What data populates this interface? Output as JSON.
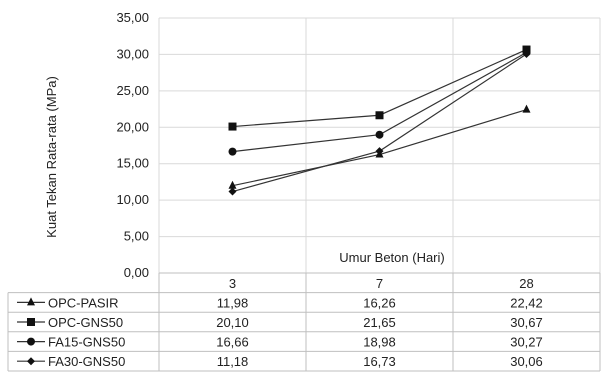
{
  "chart_data": {
    "type": "line",
    "xlabel": "Umur  Beton (Hari)",
    "ylabel": "Kuat Tekan Rata-rata (MPa)",
    "ylim": [
      0,
      35
    ],
    "yticks": [
      "0,00",
      "5,00",
      "10,00",
      "15,00",
      "20,00",
      "25,00",
      "30,00",
      "35,00"
    ],
    "ytick_values": [
      0,
      5,
      10,
      15,
      20,
      25,
      30,
      35
    ],
    "categories": [
      "3",
      "7",
      "28"
    ],
    "grid": true,
    "legend": "data-table",
    "series": [
      {
        "name": "OPC-PASIR",
        "marker": "triangle",
        "values": [
          11.98,
          16.26,
          22.42
        ],
        "labels": [
          "11,98",
          "16,26",
          "22,42"
        ]
      },
      {
        "name": "OPC-GNS50",
        "marker": "square",
        "values": [
          20.1,
          21.65,
          30.67
        ],
        "labels": [
          "20,10",
          "21,65",
          "30,67"
        ]
      },
      {
        "name": "FA15-GNS50",
        "marker": "circle",
        "values": [
          16.66,
          18.98,
          30.27
        ],
        "labels": [
          "16,66",
          "18,98",
          "30,27"
        ]
      },
      {
        "name": "FA30-GNS50",
        "marker": "diamond",
        "values": [
          11.18,
          16.73,
          30.06
        ],
        "labels": [
          "11,18",
          "16,73",
          "30,06"
        ]
      }
    ],
    "colors": {
      "line": "#333333",
      "grid": "#d9d9d9",
      "marker": "#111111",
      "table_border": "#bfbfbf"
    }
  }
}
